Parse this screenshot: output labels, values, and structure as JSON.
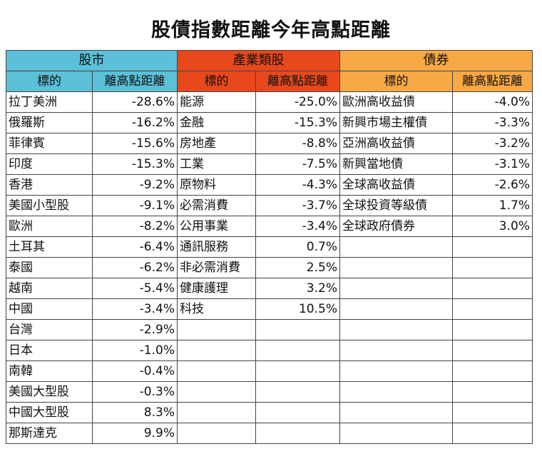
{
  "title": "股債指數距離今年高點距離",
  "chart_data": {
    "type": "table",
    "title": "股債指數距離今年高點距離",
    "groups": [
      {
        "header": "股市",
        "color": "#5bc0d8",
        "columns": [
          "標的",
          "離高點距離"
        ],
        "rows": [
          [
            "拉丁美洲",
            "-28.6%"
          ],
          [
            "俄羅斯",
            "-16.2%"
          ],
          [
            "菲律賓",
            "-15.6%"
          ],
          [
            "印度",
            "-15.3%"
          ],
          [
            "香港",
            "-9.2%"
          ],
          [
            "美國小型股",
            "-9.1%"
          ],
          [
            "歐洲",
            "-8.2%"
          ],
          [
            "土耳其",
            "-6.4%"
          ],
          [
            "泰國",
            "-6.2%"
          ],
          [
            "越南",
            "-5.4%"
          ],
          [
            "中國",
            "-3.4%"
          ],
          [
            "台灣",
            "-2.9%"
          ],
          [
            "日本",
            "-1.0%"
          ],
          [
            "南韓",
            "-0.4%"
          ],
          [
            "美國大型股",
            "-0.3%"
          ],
          [
            "中國大型股",
            "8.3%"
          ],
          [
            "那斯達克",
            "9.9%"
          ]
        ]
      },
      {
        "header": "產業類股",
        "color": "#e8481c",
        "columns": [
          "標的",
          "離高點距離"
        ],
        "rows": [
          [
            "能源",
            "-25.0%"
          ],
          [
            "金融",
            "-15.3%"
          ],
          [
            "房地產",
            "-8.8%"
          ],
          [
            "工業",
            "-7.5%"
          ],
          [
            "原物料",
            "-4.3%"
          ],
          [
            "必需消費",
            "-3.7%"
          ],
          [
            "公用事業",
            "-3.4%"
          ],
          [
            "通訊服務",
            "0.7%"
          ],
          [
            "非必需消費",
            "2.5%"
          ],
          [
            "健康護理",
            "3.2%"
          ],
          [
            "科技",
            "10.5%"
          ]
        ]
      },
      {
        "header": "債券",
        "color": "#f8a945",
        "columns": [
          "標的",
          "離高點距離"
        ],
        "rows": [
          [
            "歐洲高收益債",
            "-4.0%"
          ],
          [
            "新興市場主權債",
            "-3.3%"
          ],
          [
            "亞洲高收益債",
            "-3.2%"
          ],
          [
            "新興當地債",
            "-3.1%"
          ],
          [
            "全球高收益債",
            "-2.6%"
          ],
          [
            "全球投資等級債",
            "1.7%"
          ],
          [
            "全球政府債券",
            "3.0%"
          ]
        ]
      }
    ]
  }
}
